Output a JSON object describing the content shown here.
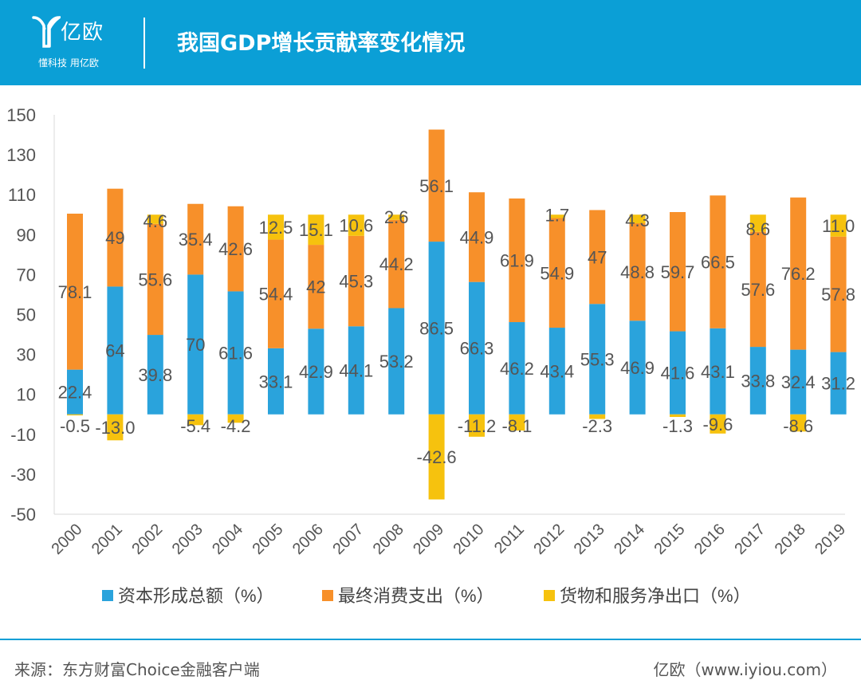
{
  "header": {
    "brand_name": "亿欧",
    "brand_slogan": "懂科技 用亿欧",
    "title": "我国GDP增长贡献率变化情况"
  },
  "colors": {
    "header_bg": "#0b9fd6",
    "capital": "#2aa3dc",
    "consumption": "#f7902a",
    "net_export": "#f6c20e"
  },
  "chart_data": {
    "type": "bar",
    "stacked": true,
    "title": "",
    "xlabel": "",
    "ylabel": "",
    "ylim": [
      -50,
      150
    ],
    "yticks": [
      150,
      130,
      110,
      90,
      70,
      50,
      30,
      10,
      -10,
      -30,
      -50
    ],
    "grid": false,
    "legend_position": "bottom",
    "categories": [
      "2000",
      "2001",
      "2002",
      "2003",
      "2004",
      "2005",
      "2006",
      "2007",
      "2008",
      "2009",
      "2010",
      "2011",
      "2012",
      "2013",
      "2014",
      "2015",
      "2016",
      "2017",
      "2018",
      "2019"
    ],
    "series": [
      {
        "name": "资本形成总额（%）",
        "color": "#2aa3dc",
        "values": [
          22.4,
          64,
          39.8,
          70,
          61.6,
          33.1,
          42.9,
          44.1,
          53.2,
          86.5,
          66.3,
          46.2,
          43.4,
          55.3,
          46.9,
          41.6,
          43.1,
          33.8,
          32.4,
          31.2
        ],
        "labels": [
          "22.4",
          "64",
          "39.8",
          "70",
          "61.6",
          "33.1",
          "42.9",
          "44.1",
          "53.2",
          "86.5",
          "66.3",
          "46.2",
          "43.4",
          "55.3",
          "46.9",
          "41.6",
          "43.1",
          "33.8",
          "32.4",
          "31.2"
        ]
      },
      {
        "name": "最终消费支出（%）",
        "color": "#f7902a",
        "values": [
          78.1,
          49,
          55.6,
          35.4,
          42.6,
          54.4,
          42,
          45.3,
          44.2,
          56.1,
          44.9,
          61.9,
          54.9,
          47,
          48.8,
          59.7,
          66.5,
          57.6,
          76.2,
          57.8
        ],
        "labels": [
          "78.1",
          "49",
          "55.6",
          "35.4",
          "42.6",
          "54.4",
          "42",
          "45.3",
          "44.2",
          "56.1",
          "44.9",
          "61.9",
          "54.9",
          "47",
          "48.8",
          "59.7",
          "66.5",
          "57.6",
          "76.2",
          "57.8"
        ]
      },
      {
        "name": "货物和服务净出口（%）",
        "color": "#f6c20e",
        "values": [
          -0.5,
          -13.0,
          4.6,
          -5.4,
          -4.2,
          12.5,
          15.1,
          10.6,
          2.6,
          -42.6,
          -11.2,
          -8.1,
          1.7,
          -2.3,
          4.3,
          -1.3,
          -9.6,
          8.6,
          -8.6,
          11.0
        ],
        "labels": [
          "-0.5",
          "-13.0",
          "4.6",
          "-5.4",
          "-4.2",
          "12.5",
          "15.1",
          "10.6",
          "2.6",
          "-42.6",
          "-11.2",
          "-8.1",
          "1.7",
          "-2.3",
          "4.3",
          "-1.3",
          "-9.6",
          "8.6",
          "-8.6",
          "11.0"
        ]
      }
    ]
  },
  "footer": {
    "source": "来源：东方财富Choice金融客户端",
    "site": "亿欧（www.iyiou.com）"
  }
}
